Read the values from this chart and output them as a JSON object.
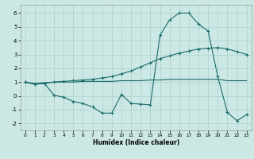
{
  "xlabel": "Humidex (Indice chaleur)",
  "bg_color": "#cce8e4",
  "grid_color": "#aad0cc",
  "line_color": "#1a6b6b",
  "xlim": [
    -0.5,
    23.5
  ],
  "ylim": [
    -2.5,
    6.6
  ],
  "xticks": [
    0,
    1,
    2,
    3,
    4,
    5,
    6,
    7,
    8,
    9,
    10,
    11,
    12,
    13,
    14,
    15,
    16,
    17,
    18,
    19,
    20,
    21,
    22,
    23
  ],
  "yticks": [
    -2,
    -1,
    0,
    1,
    2,
    3,
    4,
    5,
    6
  ],
  "line1_x": [
    0,
    1,
    2,
    3,
    4,
    5,
    6,
    7,
    8,
    9,
    10,
    11,
    12,
    13,
    14,
    15,
    16,
    17,
    18,
    19,
    20,
    21,
    22,
    23
  ],
  "line1_y": [
    1.0,
    0.85,
    0.9,
    1.0,
    1.05,
    1.1,
    1.15,
    1.2,
    1.3,
    1.4,
    1.6,
    1.8,
    2.1,
    2.4,
    2.7,
    2.9,
    3.1,
    3.25,
    3.4,
    3.45,
    3.5,
    3.4,
    3.2,
    3.0
  ],
  "line2_x": [
    0,
    1,
    2,
    3,
    4,
    5,
    6,
    7,
    8,
    9,
    10,
    11,
    12,
    13,
    14,
    15,
    16,
    17,
    18,
    19,
    20,
    21,
    22,
    23
  ],
  "line2_y": [
    1.0,
    0.9,
    0.95,
    1.0,
    1.0,
    1.0,
    1.05,
    1.05,
    1.05,
    1.05,
    1.1,
    1.1,
    1.1,
    1.15,
    1.15,
    1.2,
    1.2,
    1.2,
    1.2,
    1.2,
    1.2,
    1.1,
    1.1,
    1.1
  ],
  "line3_x": [
    0,
    1,
    2,
    3,
    4,
    5,
    6,
    7,
    8,
    9,
    10,
    11,
    12,
    13,
    14,
    15,
    16,
    17,
    18,
    19,
    20,
    21,
    22,
    23
  ],
  "line3_y": [
    1.0,
    0.85,
    0.9,
    0.05,
    -0.1,
    -0.4,
    -0.55,
    -0.8,
    -1.25,
    -1.25,
    0.1,
    -0.55,
    -0.6,
    -0.65,
    4.4,
    5.5,
    6.0,
    6.0,
    5.2,
    4.7,
    1.4,
    -1.2,
    -1.8,
    -1.35
  ]
}
